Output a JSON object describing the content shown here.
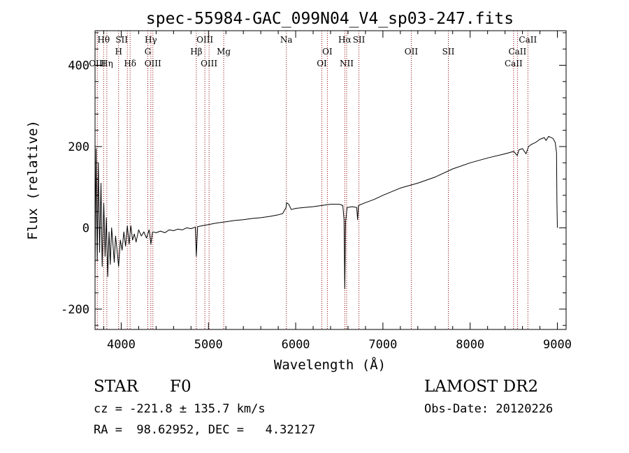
{
  "chart_data": {
    "type": "line",
    "title": "spec-55984-GAC_099N04_V4_sp03-247.fits",
    "xlabel": "Wavelength (Å)",
    "ylabel": "Flux (relative)",
    "xlim": [
      3700,
      9100
    ],
    "ylim": [
      -250,
      485
    ],
    "xticks": [
      4000,
      5000,
      6000,
      7000,
      8000,
      9000
    ],
    "yticks": [
      -200,
      0,
      200,
      400
    ],
    "grid": false,
    "series": [
      {
        "points": [
          [
            3700,
            -110
          ],
          [
            3712,
            195
          ],
          [
            3725,
            -80
          ],
          [
            3738,
            160
          ],
          [
            3752,
            -60
          ],
          [
            3768,
            110
          ],
          [
            3782,
            -95
          ],
          [
            3800,
            60
          ],
          [
            3815,
            -70
          ],
          [
            3830,
            25
          ],
          [
            3845,
            -120
          ],
          [
            3860,
            -10
          ],
          [
            3875,
            -90
          ],
          [
            3890,
            0
          ],
          [
            3905,
            -40
          ],
          [
            3920,
            -85
          ],
          [
            3935,
            -20
          ],
          [
            3950,
            -50
          ],
          [
            3970,
            -95
          ],
          [
            3990,
            -30
          ],
          [
            4010,
            -55
          ],
          [
            4030,
            -10
          ],
          [
            4050,
            -45
          ],
          [
            4070,
            5
          ],
          [
            4090,
            -40
          ],
          [
            4110,
            5
          ],
          [
            4130,
            -30
          ],
          [
            4150,
            -15
          ],
          [
            4170,
            -35
          ],
          [
            4200,
            -5
          ],
          [
            4230,
            -20
          ],
          [
            4260,
            -10
          ],
          [
            4290,
            -25
          ],
          [
            4320,
            -5
          ],
          [
            4340,
            -40
          ],
          [
            4360,
            -10
          ],
          [
            4400,
            -12
          ],
          [
            4450,
            -8
          ],
          [
            4500,
            -12
          ],
          [
            4550,
            -5
          ],
          [
            4600,
            -7
          ],
          [
            4650,
            -3
          ],
          [
            4700,
            -5
          ],
          [
            4750,
            0
          ],
          [
            4800,
            -2
          ],
          [
            4850,
            2
          ],
          [
            4861,
            -70
          ],
          [
            4875,
            3
          ],
          [
            4900,
            4
          ],
          [
            4950,
            6
          ],
          [
            5000,
            8
          ],
          [
            5100,
            12
          ],
          [
            5200,
            15
          ],
          [
            5300,
            18
          ],
          [
            5400,
            20
          ],
          [
            5500,
            23
          ],
          [
            5600,
            25
          ],
          [
            5700,
            28
          ],
          [
            5800,
            32
          ],
          [
            5850,
            35
          ],
          [
            5890,
            50
          ],
          [
            5895,
            62
          ],
          [
            5920,
            58
          ],
          [
            5950,
            45
          ],
          [
            6000,
            48
          ],
          [
            6100,
            50
          ],
          [
            6200,
            52
          ],
          [
            6300,
            55
          ],
          [
            6400,
            58
          ],
          [
            6500,
            58
          ],
          [
            6540,
            55
          ],
          [
            6555,
            20
          ],
          [
            6563,
            -150
          ],
          [
            6572,
            15
          ],
          [
            6590,
            50
          ],
          [
            6650,
            52
          ],
          [
            6700,
            50
          ],
          [
            6710,
            20
          ],
          [
            6720,
            55
          ],
          [
            6800,
            62
          ],
          [
            6900,
            70
          ],
          [
            7000,
            80
          ],
          [
            7200,
            98
          ],
          [
            7400,
            110
          ],
          [
            7600,
            125
          ],
          [
            7800,
            145
          ],
          [
            8000,
            160
          ],
          [
            8200,
            172
          ],
          [
            8400,
            182
          ],
          [
            8500,
            188
          ],
          [
            8540,
            178
          ],
          [
            8560,
            192
          ],
          [
            8600,
            195
          ],
          [
            8640,
            182
          ],
          [
            8670,
            200
          ],
          [
            8700,
            205
          ],
          [
            8750,
            210
          ],
          [
            8800,
            218
          ],
          [
            8850,
            222
          ],
          [
            8870,
            215
          ],
          [
            8900,
            225
          ],
          [
            8950,
            220
          ],
          [
            8975,
            210
          ],
          [
            8990,
            185
          ],
          [
            8995,
            60
          ],
          [
            9000,
            0
          ]
        ]
      }
    ],
    "lines": [
      {
        "label": "Hθ",
        "wave": 3798,
        "row": 1,
        "dx": 0
      },
      {
        "label": "H",
        "wave": 3970,
        "row": 2,
        "dx": 0
      },
      {
        "label": "SII",
        "wave": 4070,
        "row": 1,
        "dx": -8
      },
      {
        "label": "Hδ",
        "wave": 4102,
        "row": 3,
        "dx": 0
      },
      {
        "label": "OIII",
        "wave": 3726,
        "row": 3,
        "dx": 0
      },
      {
        "label": "Hη",
        "wave": 3835,
        "row": 3,
        "dx": 0
      },
      {
        "label": "Hγ",
        "wave": 4340,
        "row": 1,
        "dx": 0
      },
      {
        "label": "G",
        "wave": 4305,
        "row": 2,
        "dx": 0
      },
      {
        "label": "OIII",
        "wave": 4363,
        "row": 3,
        "dx": 0
      },
      {
        "label": "Hβ",
        "wave": 4861,
        "row": 2,
        "dx": 0
      },
      {
        "label": "OIII",
        "wave": 4959,
        "row": 1,
        "dx": 0
      },
      {
        "label": "OIII",
        "wave": 5007,
        "row": 3,
        "dx": 0
      },
      {
        "label": "Mg",
        "wave": 5175,
        "row": 2,
        "dx": 0
      },
      {
        "label": "Na",
        "wave": 5893,
        "row": 1,
        "dx": 0
      },
      {
        "label": "OI",
        "wave": 6300,
        "row": 3,
        "dx": 0
      },
      {
        "label": "OI",
        "wave": 6363,
        "row": 2,
        "dx": 0
      },
      {
        "label": "Hα",
        "wave": 6563,
        "row": 1,
        "dx": 0
      },
      {
        "label": "NII",
        "wave": 6584,
        "row": 3,
        "dx": 0
      },
      {
        "label": "SII",
        "wave": 6725,
        "row": 1,
        "dx": 0
      },
      {
        "label": "OII",
        "wave": 7325,
        "row": 2,
        "dx": 0
      },
      {
        "label": "SII",
        "wave": 7750,
        "row": 2,
        "dx": 0
      },
      {
        "label": "CaII",
        "wave": 8498,
        "row": 3,
        "dx": 0
      },
      {
        "label": "CaII",
        "wave": 8542,
        "row": 2,
        "dx": 0
      },
      {
        "label": "CaII",
        "wave": 8662,
        "row": 1,
        "dx": 0
      }
    ]
  },
  "info": {
    "class_label": "STAR",
    "subclass_label": "F0",
    "survey_label": "LAMOST DR2",
    "cz_text": "cz = -221.8 ± 135.7 km/s",
    "obs_date_text": "Obs-Date: 20120226",
    "coords_text": "RA =  98.62952, DEC =   4.32127"
  },
  "colors": {
    "spectrum": "#000000",
    "line_marker": "#8b0000",
    "text": "#000000"
  }
}
